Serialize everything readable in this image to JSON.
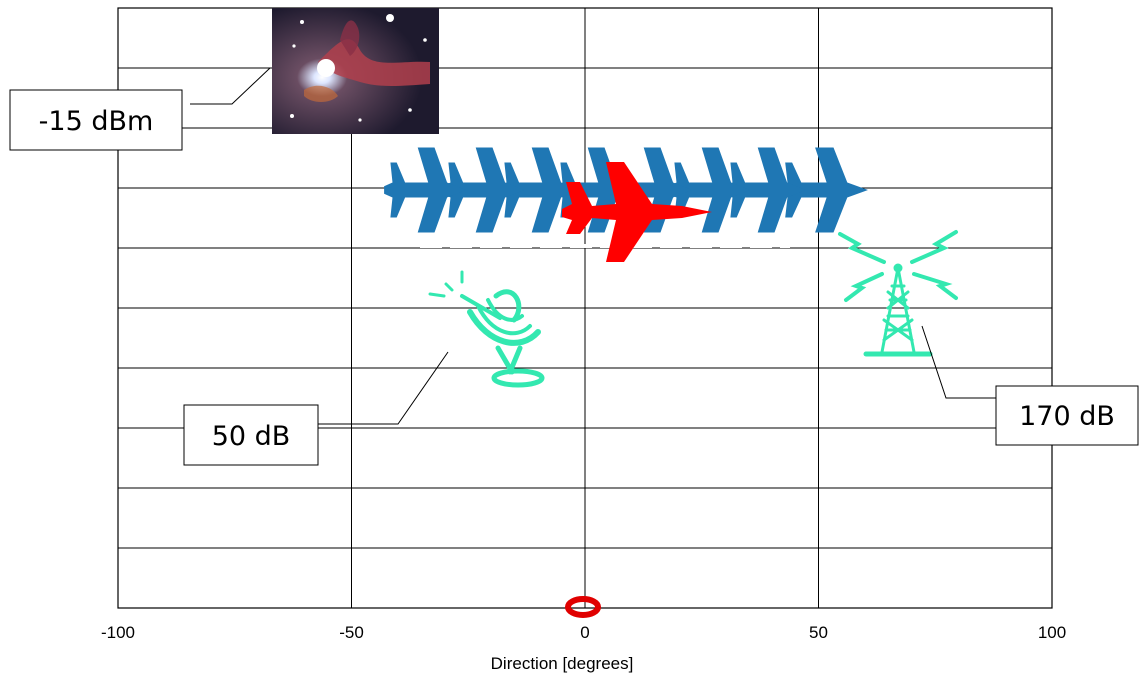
{
  "chart_data": {
    "type": "scatter",
    "title": "",
    "xlabel": "Direction [degrees]",
    "ylabel": "",
    "xlim": [
      -100,
      100
    ],
    "xticks": [
      -100,
      -50,
      0,
      50,
      100
    ],
    "x_tick_labels": [
      "-100",
      "-50",
      "0",
      "50",
      "100"
    ],
    "y_gridlines": 10,
    "grid": true,
    "legend": "none",
    "annotations": [
      {
        "key": "nebula",
        "text": "-15 dBm"
      },
      {
        "key": "dish",
        "text": "50 dB"
      },
      {
        "key": "tower",
        "text": "170 dB"
      }
    ],
    "icons": [
      "nebula-image",
      "jet-trail-icon",
      "fighter-jet-icon",
      "satellite-dish-icon",
      "radio-tower-icon",
      "observer-marker-icon"
    ],
    "colors": {
      "jet": "#ff0000",
      "jet_trail": "#1f77b4",
      "emitters": "#33e8b0",
      "observer": "#e00000",
      "grid": "#000000"
    }
  }
}
